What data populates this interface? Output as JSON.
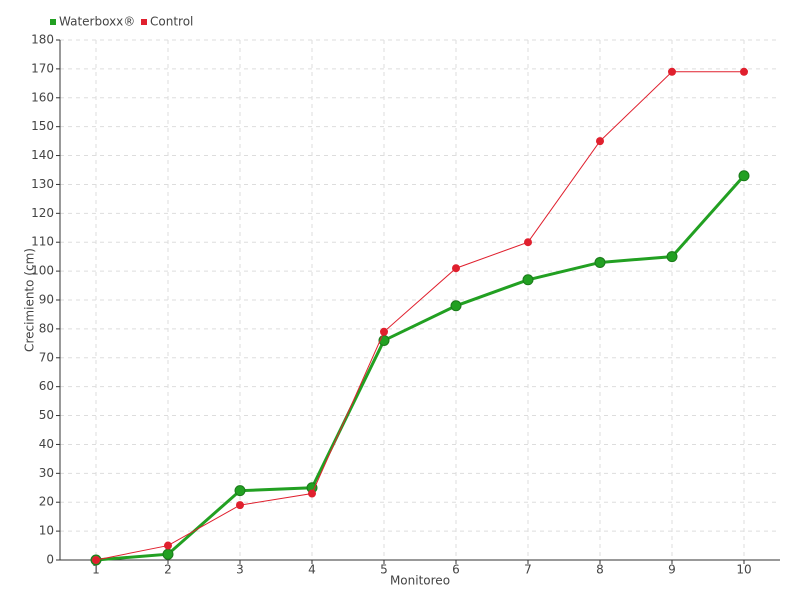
{
  "chart_data": {
    "type": "line",
    "x_label": "Monitoreo",
    "y_label": "Crecimiento (cm)",
    "categories": [
      "1",
      "2",
      "3",
      "4",
      "5",
      "6",
      "7",
      "8",
      "9",
      "10"
    ],
    "series": [
      {
        "name": "Waterboxx®",
        "color": "#22a022",
        "values": [
          0,
          2,
          24,
          25,
          76,
          88,
          97,
          103,
          105,
          133
        ]
      },
      {
        "name": "Control",
        "color": "#e0202e",
        "values": [
          0,
          5,
          19,
          23,
          79,
          101,
          110,
          145,
          169,
          169
        ]
      }
    ],
    "ylim": [
      0,
      180
    ],
    "yticks": [
      0,
      10,
      20,
      30,
      40,
      50,
      60,
      70,
      80,
      90,
      100,
      110,
      120,
      130,
      140,
      150,
      160,
      170,
      180
    ],
    "grid": true
  }
}
